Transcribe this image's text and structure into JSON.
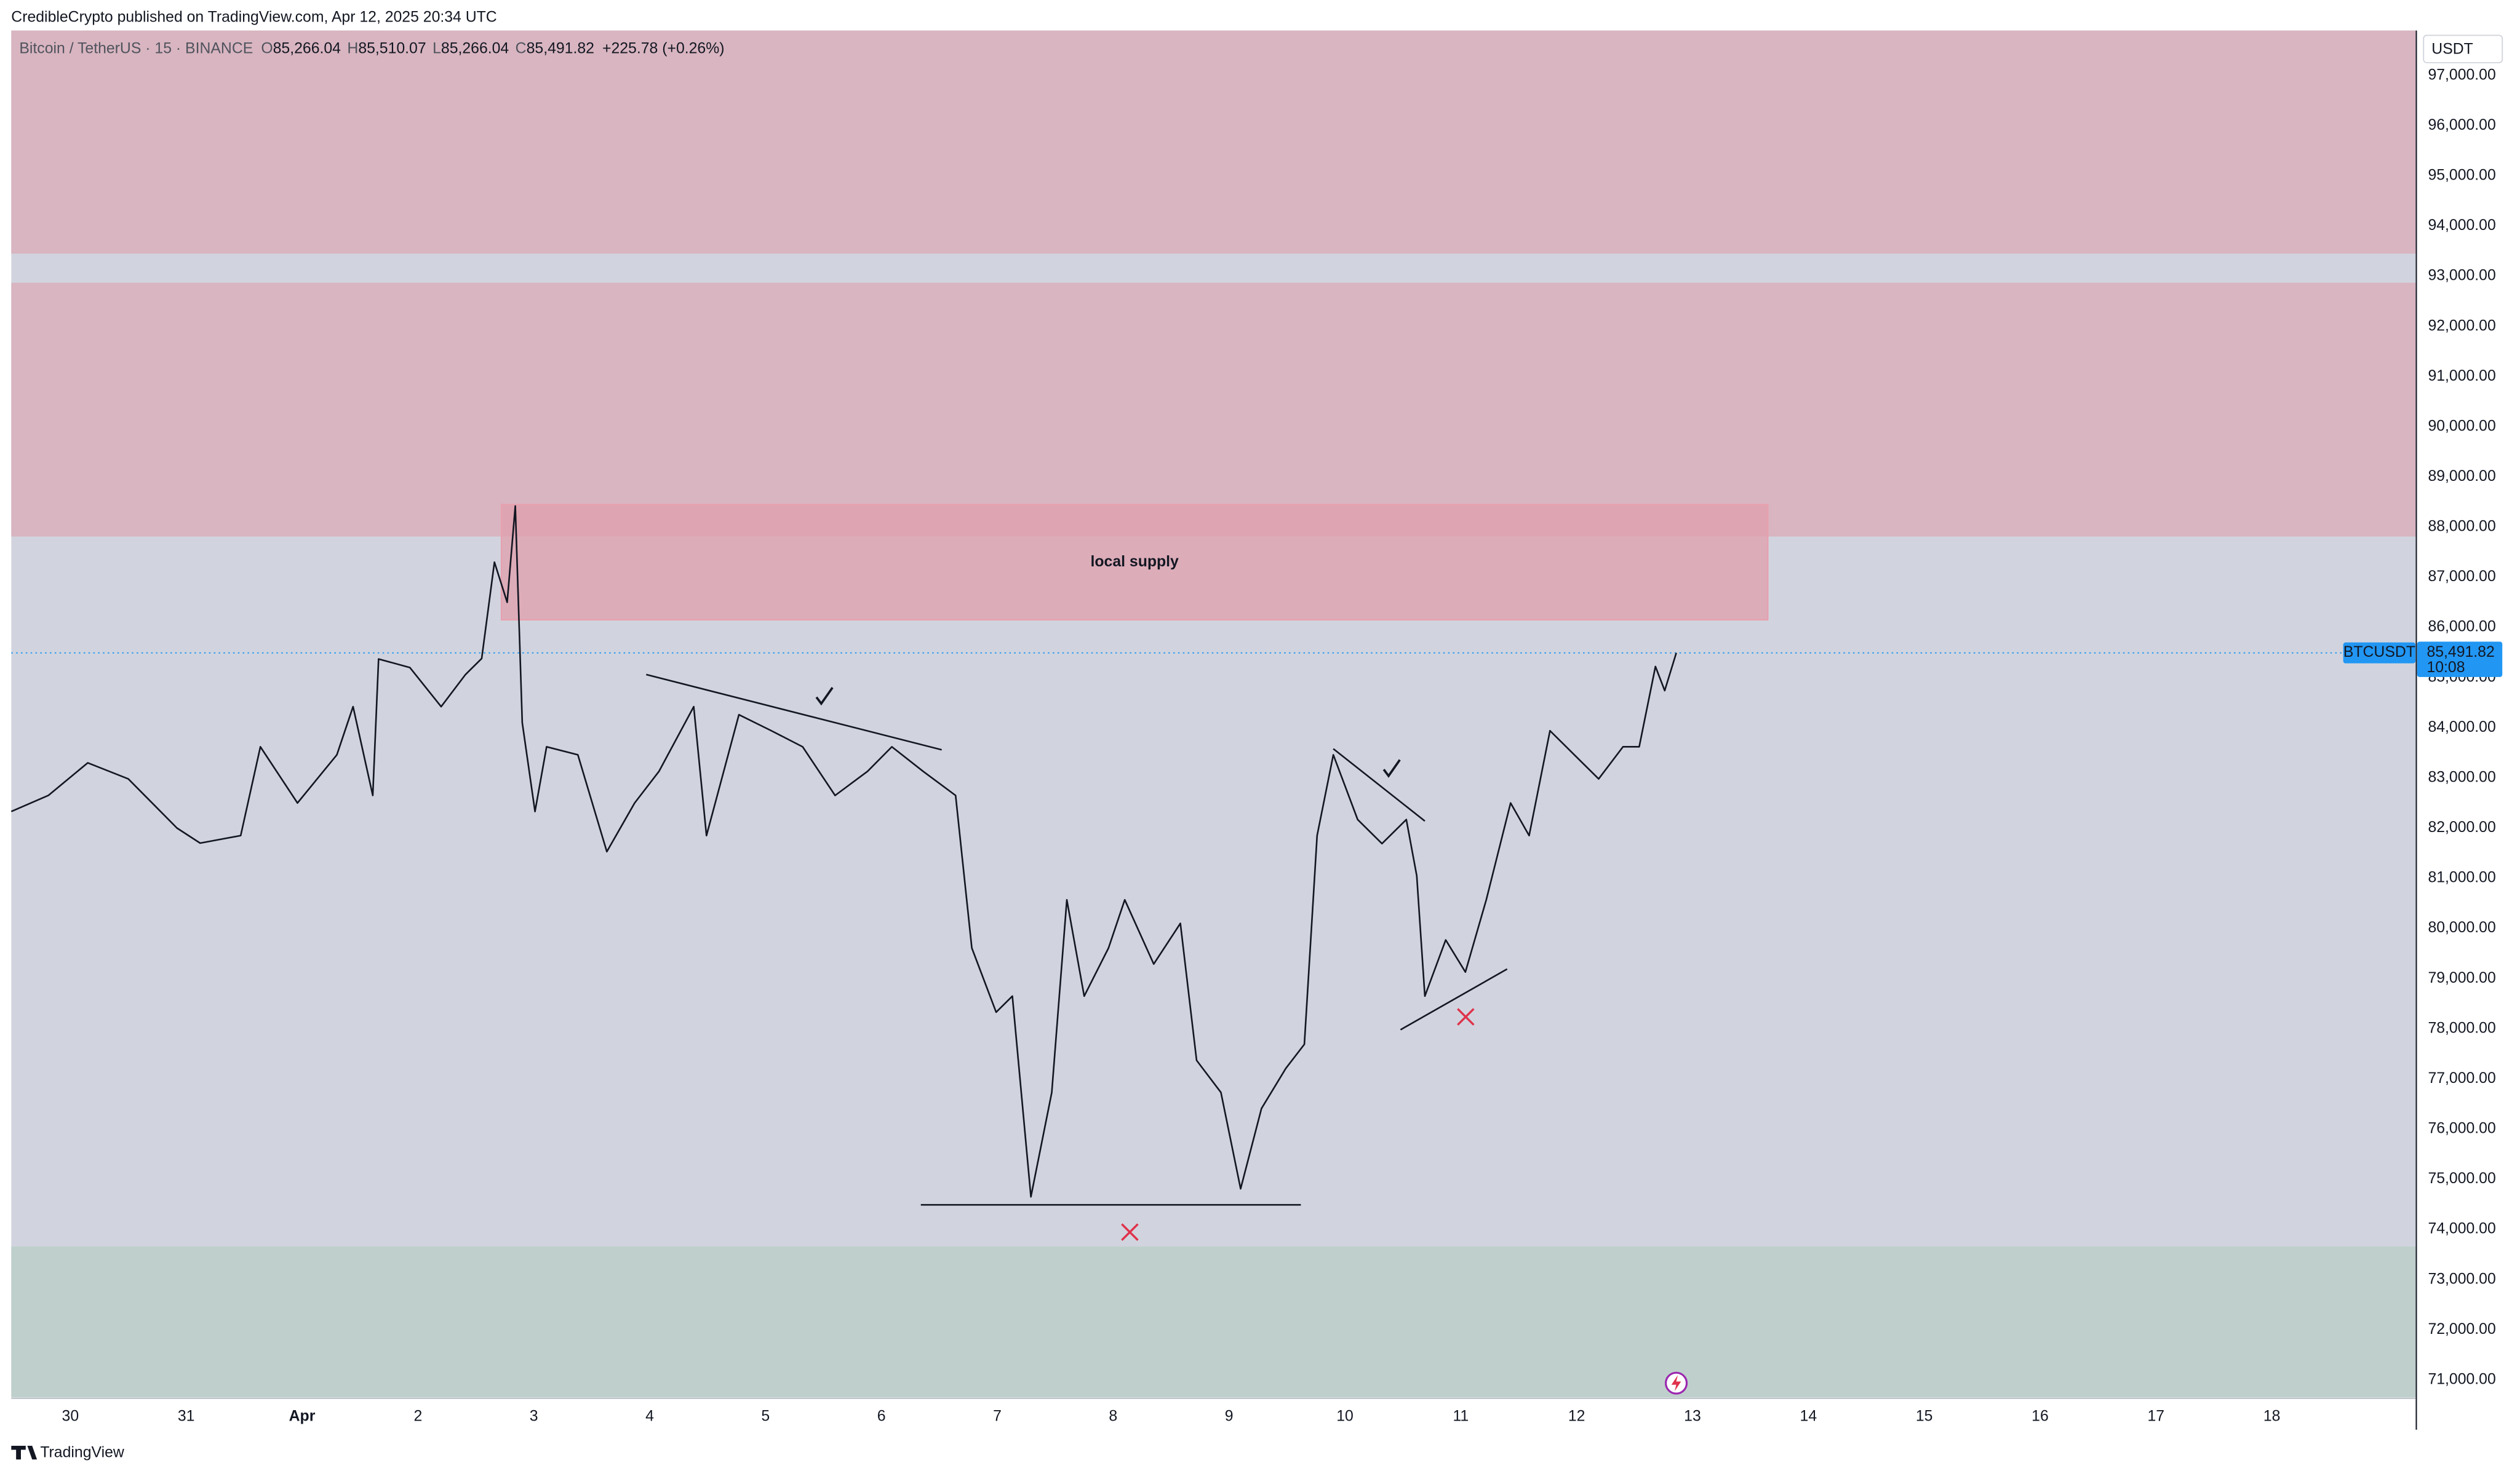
{
  "chart_data": {
    "type": "line",
    "header": "CredibleCrypto published on TradingView.com, Apr 12, 2025 20:34 UTC",
    "symbol": "Bitcoin / TetherUS · 15 · BINANCE",
    "ohlc": [
      [
        "O",
        "85,266.04"
      ],
      [
        "H",
        "85,510.07"
      ],
      [
        "L",
        "85,266.04"
      ],
      [
        "C",
        "85,491.82"
      ]
    ],
    "change": "+225.78 (+0.26%)",
    "currency": "USDT",
    "footer": "TradingView",
    "line_color": "#131722",
    "x": [
      29.49,
      29.81,
      30.15,
      30.5,
      30.92,
      31.12,
      31.47,
      31.64,
      31.96,
      32.3,
      32.44,
      32.61,
      32.66,
      32.93,
      33.2,
      33.41,
      33.55,
      33.66,
      33.77,
      33.84,
      33.9,
      34.01,
      34.11,
      34.38,
      34.63,
      34.87,
      35.08,
      35.38,
      35.49,
      35.77,
      36.05,
      36.32,
      36.6,
      36.88,
      37.09,
      37.36,
      37.64,
      37.78,
      37.99,
      38.13,
      38.29,
      38.47,
      38.6,
      38.75,
      38.96,
      39.1,
      39.35,
      39.58,
      39.72,
      39.93,
      40.1,
      40.28,
      40.49,
      40.65,
      40.76,
      40.9,
      41.11,
      41.32,
      41.53,
      41.62,
      41.69,
      41.87,
      42.04,
      42.22,
      42.43,
      42.59,
      42.77,
      42.98,
      43.19,
      43.4,
      43.54,
      43.68,
      43.76,
      43.86
    ],
    "values": [
      82330,
      82650,
      83300,
      82980,
      82000,
      81700,
      81850,
      83620,
      82500,
      83460,
      84420,
      82650,
      85370,
      85200,
      84420,
      85060,
      85380,
      87300,
      86500,
      88420,
      84100,
      82330,
      83620,
      83460,
      81530,
      82500,
      83130,
      84420,
      81850,
      84260,
      83940,
      83620,
      82650,
      83130,
      83620,
      83130,
      82650,
      79610,
      78330,
      78650,
      74650,
      76730,
      80570,
      78650,
      79610,
      80570,
      79290,
      80100,
      77370,
      76730,
      74810,
      76410,
      77210,
      77690,
      81850,
      83460,
      82170,
      81690,
      82170,
      81050,
      78650,
      79770,
      79130,
      80570,
      82500,
      81850,
      83940,
      83460,
      82980,
      83620,
      83620,
      85220,
      84740,
      85491.82
    ],
    "xlim": [
      29.49,
      50.24
    ],
    "ylim": [
      70648,
      97897
    ],
    "xticks": [
      30,
      31,
      {
        "value": 32,
        "label": "Apr"
      },
      {
        "value": 33,
        "label": "2"
      },
      {
        "value": 34,
        "label": "3"
      },
      {
        "value": 35,
        "label": "4"
      },
      {
        "value": 36,
        "label": "5"
      },
      {
        "value": 37,
        "label": "6"
      },
      {
        "value": 38,
        "label": "7"
      },
      {
        "value": 39,
        "label": "8"
      },
      {
        "value": 40,
        "label": "9"
      },
      {
        "value": 41,
        "label": "10"
      },
      {
        "value": 42,
        "label": "11"
      },
      {
        "value": 43,
        "label": "12"
      },
      {
        "value": 44,
        "label": "13"
      },
      {
        "value": 45,
        "label": "14"
      },
      {
        "value": 46,
        "label": "15"
      },
      {
        "value": 47,
        "label": "16"
      },
      {
        "value": 48,
        "label": "17"
      },
      {
        "value": 49,
        "label": "18"
      }
    ],
    "yticks": [
      {
        "value": 71000,
        "label": "71,000.00"
      },
      {
        "value": 72000,
        "label": "72,000.00"
      },
      {
        "value": 73000,
        "label": "73,000.00"
      },
      {
        "value": 74000,
        "label": "74,000.00"
      },
      {
        "value": 75000,
        "label": "75,000.00"
      },
      {
        "value": 76000,
        "label": "76,000.00"
      },
      {
        "value": 77000,
        "label": "77,000.00"
      },
      {
        "value": 78000,
        "label": "78,000.00"
      },
      {
        "value": 79000,
        "label": "79,000.00"
      },
      {
        "value": 80000,
        "label": "80,000.00"
      },
      {
        "value": 81000,
        "label": "81,000.00"
      },
      {
        "value": 82000,
        "label": "82,000.00"
      },
      {
        "value": 83000,
        "label": "83,000.00"
      },
      {
        "value": 84000,
        "label": "84,000.00"
      },
      {
        "value": 85000,
        "label": "85,000.00"
      },
      {
        "value": 86000,
        "label": "86,000.00"
      },
      {
        "value": 87000,
        "label": "87,000.00"
      },
      {
        "value": 88000,
        "label": "88,000.00"
      },
      {
        "value": 89000,
        "label": "89,000.00"
      },
      {
        "value": 90000,
        "label": "90,000.00"
      },
      {
        "value": 91000,
        "label": "91,000.00"
      },
      {
        "value": 92000,
        "label": "92,000.00"
      },
      {
        "value": 93000,
        "label": "93,000.00"
      },
      {
        "value": 94000,
        "label": "94,000.00"
      },
      {
        "value": 95000,
        "label": "95,000.00"
      },
      {
        "value": 96000,
        "label": "96,000.00"
      },
      {
        "value": 97000,
        "label": "97,000.00"
      }
    ],
    "grid": false,
    "zones": [
      {
        "low": 93450,
        "high": 97900,
        "color": "#d8b5c0"
      },
      {
        "low": 87810,
        "high": 92870,
        "color": "#d8b5c0"
      },
      {
        "low": 70650,
        "high": 73660,
        "color": "#bfd0cc"
      }
    ],
    "supply": {
      "low": 86150,
      "high": 88450,
      "x": [
        33.72,
        44.65
      ],
      "color": "#e09fac",
      "label": "local supply"
    },
    "trendlines": [
      {
        "x": [
          34.97,
          37.52
        ],
        "y": [
          85060,
          83560
        ]
      },
      {
        "x": [
          40.9,
          41.69
        ],
        "y": [
          83580,
          82140
        ]
      },
      {
        "x": [
          41.48,
          42.4
        ],
        "y": [
          77980,
          79190
        ]
      },
      {
        "x": [
          37.34,
          40.62
        ],
        "y": [
          74490,
          74490
        ]
      }
    ],
    "last_price": {
      "value": 85491.82,
      "label": "85,491.82",
      "tag": "BTCUSDT",
      "countdown": "10:08",
      "color": "#2196f3"
    }
  }
}
